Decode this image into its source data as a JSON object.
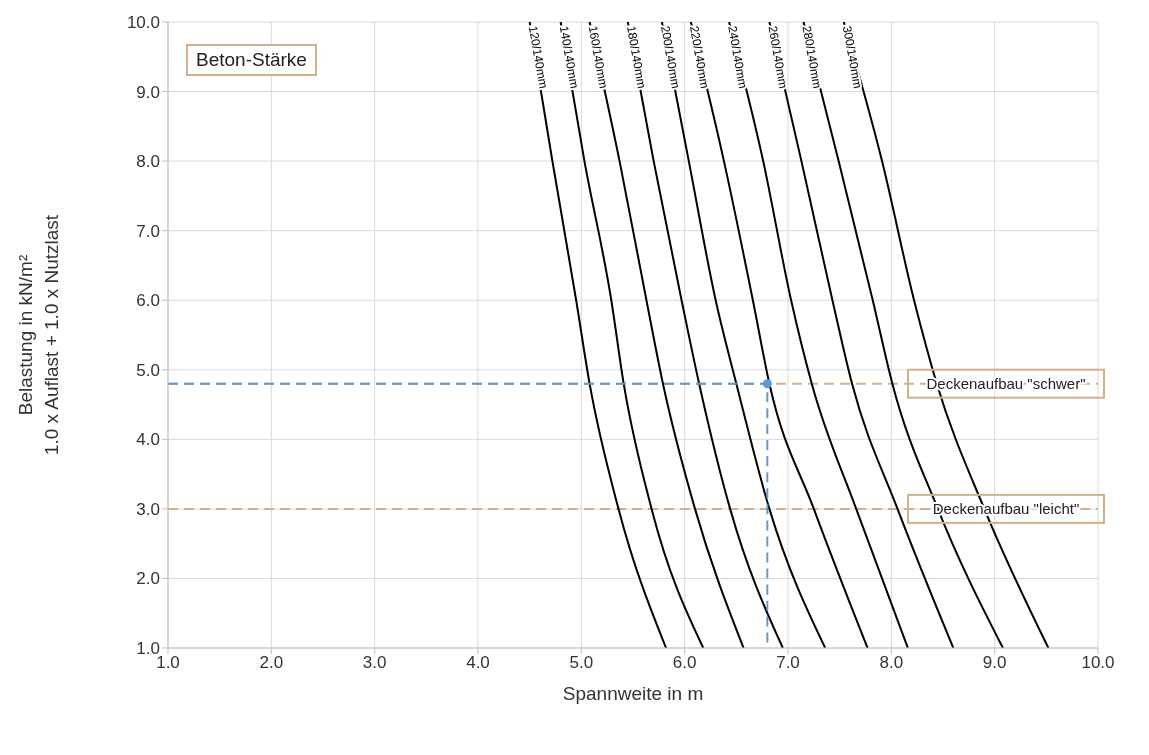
{
  "chart_data": {
    "type": "line",
    "title": "Beton-Stärke",
    "xlabel": "Spannweite in m",
    "ylabel": "Belastung in kN/m²\n1.0 x Auflast + 1.0 x Nutzlast",
    "xlim": [
      1,
      10
    ],
    "ylim": [
      1,
      10
    ],
    "xticks": [
      {
        "value": 1,
        "label": "1.0"
      },
      {
        "value": 2,
        "label": "2.0"
      },
      {
        "value": 3,
        "label": "3.0"
      },
      {
        "value": 4,
        "label": "4.0"
      },
      {
        "value": 5,
        "label": "5.0"
      },
      {
        "value": 6,
        "label": "6.0"
      },
      {
        "value": 7,
        "label": "7.0"
      },
      {
        "value": 8,
        "label": "8.0"
      },
      {
        "value": 9,
        "label": "9.0"
      },
      {
        "value": 10,
        "label": "10.0"
      }
    ],
    "yticks": [
      {
        "value": 1,
        "label": "1.0"
      },
      {
        "value": 2,
        "label": "2.0"
      },
      {
        "value": 3,
        "label": "3.0"
      },
      {
        "value": 4,
        "label": "4.0"
      },
      {
        "value": 5,
        "label": "5.0"
      },
      {
        "value": 6,
        "label": "6.0"
      },
      {
        "value": 7,
        "label": "7.0"
      },
      {
        "value": 8,
        "label": "8.0"
      },
      {
        "value": 9,
        "label": "9.0"
      },
      {
        "value": 10,
        "label": "10.0"
      }
    ],
    "grid": true,
    "legend": false,
    "marker": "none",
    "line_style": "solid",
    "series": [
      {
        "name": "120/140mm",
        "color": "#000000",
        "x": [
          4.5,
          4.72,
          4.95,
          5.08,
          5.36,
          5.82
        ],
        "values": [
          10,
          8,
          6,
          4.8,
          3,
          1
        ]
      },
      {
        "name": "140/140mm",
        "color": "#000000",
        "x": [
          4.8,
          5.03,
          5.29,
          5.41,
          5.68,
          6.18
        ],
        "values": [
          10,
          8,
          6,
          4.8,
          3,
          1
        ]
      },
      {
        "name": "160/140mm",
        "color": "#000000",
        "x": [
          5.08,
          5.37,
          5.63,
          5.79,
          6.1,
          6.57
        ],
        "values": [
          10,
          8,
          6,
          4.8,
          3,
          1
        ]
      },
      {
        "name": "180/140mm",
        "color": "#000000",
        "x": [
          5.45,
          5.7,
          5.97,
          6.14,
          6.44,
          6.95
        ],
        "values": [
          10,
          8,
          6,
          4.8,
          3,
          1
        ]
      },
      {
        "name": "200/140mm",
        "color": "#000000",
        "x": [
          5.78,
          6.04,
          6.3,
          6.5,
          6.82,
          7.36
        ],
        "values": [
          10,
          8,
          6,
          4.8,
          3,
          1
        ]
      },
      {
        "name": "220/140mm",
        "color": "#000000",
        "x": [
          6.06,
          6.38,
          6.66,
          6.82,
          7.25,
          7.77
        ],
        "values": [
          10,
          8,
          6,
          4.8,
          3,
          1
        ]
      },
      {
        "name": "240/140mm",
        "color": "#000000",
        "x": [
          6.43,
          6.76,
          7.03,
          7.23,
          7.66,
          8.16
        ],
        "values": [
          10,
          8,
          6,
          4.8,
          3,
          1
        ]
      },
      {
        "name": "260/140mm",
        "color": "#000000",
        "x": [
          6.82,
          7.13,
          7.43,
          7.62,
          8.06,
          8.6
        ],
        "values": [
          10,
          8,
          6,
          4.8,
          3,
          1
        ]
      },
      {
        "name": "280/140mm",
        "color": "#000000",
        "x": [
          7.15,
          7.49,
          7.82,
          8.01,
          8.45,
          9.08
        ],
        "values": [
          10,
          8,
          6,
          4.8,
          3,
          1
        ]
      },
      {
        "name": "300/140mm",
        "color": "#000000",
        "x": [
          7.54,
          7.91,
          8.22,
          8.44,
          8.9,
          9.52
        ],
        "values": [
          10,
          8,
          6,
          4.8,
          3,
          1
        ]
      },
      {
        "type": "line",
        "color": "#5b9bd5",
        "line_style": "dashed",
        "x": [
          1,
          6.8,
          6.8
        ],
        "values": [
          4.8,
          4.8,
          1
        ]
      },
      {
        "type": "scatter",
        "color": "#5b9bd5",
        "marker": "circle",
        "x": [
          6.8
        ],
        "values": [
          4.8
        ]
      }
    ],
    "ref_lines": [
      {
        "axis": "y",
        "value": 4.8,
        "label": "Deckenaufbau \"schwer\"",
        "color": "#d2b08c",
        "line_style": "dashed"
      },
      {
        "axis": "y",
        "value": 3,
        "label": "Deckenaufbau \"leicht\"",
        "color": "#d2b08c",
        "line_style": "dashed"
      }
    ]
  }
}
